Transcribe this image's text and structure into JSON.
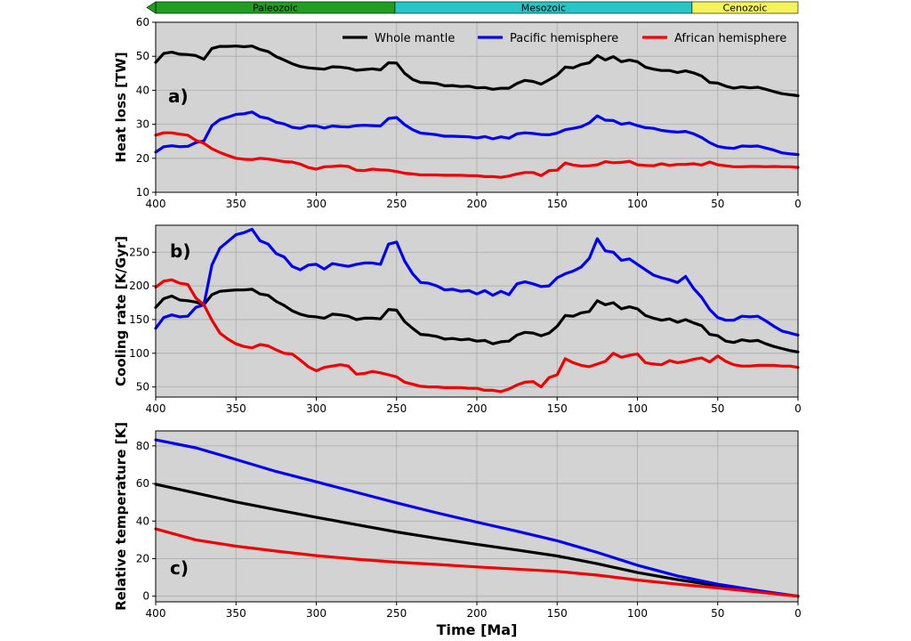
{
  "eras": [
    {
      "name": "Paleozoic",
      "start": 400,
      "end": 251,
      "color": "#1f9e1f"
    },
    {
      "name": "Mesozoic",
      "start": 251,
      "end": 66,
      "color": "#27c5c5"
    },
    {
      "name": "Cenozoic",
      "start": 66,
      "end": 0,
      "color": "#f4f45a"
    }
  ],
  "legend": [
    "Whole mantle",
    "Pacific hemisphere",
    "African hemisphere"
  ],
  "xlabel": "Time [Ma]",
  "colors": {
    "whole": "#000000",
    "pacific": "#0000ee",
    "african": "#ee0000",
    "background": "#d3d3d3"
  },
  "chart_data": [
    {
      "type": "line",
      "panel_label": "a)",
      "xlabel": "",
      "ylabel": "Heat loss [TW]",
      "xlim": [
        400,
        0
      ],
      "ylim": [
        10,
        60
      ],
      "xticks": [
        400,
        350,
        300,
        250,
        200,
        150,
        100,
        50,
        0
      ],
      "yticks": [
        10,
        20,
        30,
        40,
        50,
        60
      ],
      "grid": true,
      "legend_position": "top-right",
      "x": [
        400,
        395,
        390,
        385,
        380,
        375,
        370,
        365,
        360,
        355,
        350,
        345,
        340,
        335,
        330,
        325,
        320,
        315,
        310,
        305,
        300,
        295,
        290,
        285,
        280,
        275,
        270,
        265,
        260,
        255,
        250,
        245,
        240,
        235,
        230,
        225,
        220,
        215,
        210,
        205,
        200,
        195,
        190,
        185,
        180,
        175,
        170,
        165,
        160,
        155,
        150,
        145,
        140,
        135,
        130,
        125,
        120,
        115,
        110,
        105,
        100,
        95,
        90,
        85,
        80,
        75,
        70,
        65,
        60,
        55,
        50,
        45,
        40,
        35,
        30,
        25,
        20,
        15,
        10,
        5,
        0
      ],
      "series": [
        {
          "name": "Whole mantle",
          "color": "#000000",
          "values": [
            48.2,
            50.8,
            51.2,
            50.6,
            50.5,
            50.2,
            49.1,
            52.3,
            52.9,
            52.9,
            53.0,
            52.8,
            53.0,
            52.0,
            51.4,
            49.9,
            48.9,
            47.8,
            47.0,
            46.6,
            46.4,
            46.2,
            46.9,
            46.8,
            46.5,
            45.9,
            46.1,
            46.3,
            46.0,
            48.1,
            48.0,
            45.0,
            43.2,
            42.3,
            42.2,
            42.0,
            41.3,
            41.4,
            41.1,
            41.2,
            40.7,
            40.8,
            40.3,
            40.6,
            40.6,
            42.0,
            42.9,
            42.6,
            41.8,
            43.1,
            44.5,
            46.8,
            46.6,
            47.6,
            48.1,
            50.2,
            48.9,
            49.9,
            48.4,
            48.9,
            48.4,
            46.8,
            46.2,
            45.8,
            45.8,
            45.2,
            45.7,
            45.1,
            44.2,
            42.3,
            42.1,
            41.2,
            40.6,
            41.0,
            40.7,
            40.9,
            40.3,
            39.6,
            39.0,
            38.7,
            38.4
          ]
        },
        {
          "name": "Pacific hemisphere",
          "color": "#0000ee",
          "values": [
            21.8,
            23.4,
            23.7,
            23.4,
            23.5,
            24.6,
            25.1,
            29.6,
            31.4,
            32.1,
            32.9,
            33.1,
            33.6,
            32.2,
            31.7,
            30.6,
            30.1,
            29.1,
            28.8,
            29.5,
            29.5,
            28.9,
            29.5,
            29.3,
            29.2,
            29.6,
            29.7,
            29.6,
            29.5,
            31.7,
            32.0,
            29.9,
            28.4,
            27.4,
            27.2,
            26.9,
            26.5,
            26.5,
            26.4,
            26.3,
            26.0,
            26.4,
            25.7,
            26.3,
            25.9,
            27.2,
            27.5,
            27.3,
            27.0,
            26.9,
            27.4,
            28.4,
            28.8,
            29.3,
            30.4,
            32.5,
            31.2,
            31.1,
            30.0,
            30.4,
            29.6,
            29.0,
            28.8,
            28.2,
            27.9,
            27.7,
            27.9,
            27.2,
            26.1,
            24.6,
            23.5,
            23.1,
            22.9,
            23.6,
            23.5,
            23.6,
            23.0,
            22.4,
            21.6,
            21.3,
            21.1
          ]
        },
        {
          "name": "African hemisphere",
          "color": "#ee0000",
          "values": [
            26.8,
            27.5,
            27.5,
            27.1,
            26.8,
            25.3,
            24.4,
            22.8,
            21.7,
            20.8,
            20.0,
            19.7,
            19.6,
            20.0,
            19.8,
            19.4,
            19.0,
            18.9,
            18.3,
            17.3,
            16.8,
            17.5,
            17.6,
            17.8,
            17.6,
            16.5,
            16.4,
            16.8,
            16.6,
            16.5,
            16.1,
            15.6,
            15.4,
            15.1,
            15.1,
            15.1,
            15.0,
            15.0,
            15.0,
            14.9,
            14.9,
            14.6,
            14.6,
            14.4,
            14.8,
            15.4,
            15.8,
            15.8,
            14.9,
            16.4,
            16.5,
            18.6,
            18.0,
            17.7,
            17.8,
            18.1,
            19.0,
            18.7,
            18.8,
            19.1,
            18.1,
            17.9,
            17.8,
            18.4,
            17.9,
            18.2,
            18.2,
            18.4,
            18.0,
            18.9,
            18.1,
            17.8,
            17.5,
            17.5,
            17.6,
            17.6,
            17.5,
            17.6,
            17.5,
            17.5,
            17.3
          ]
        }
      ]
    },
    {
      "type": "line",
      "panel_label": "b)",
      "xlabel": "",
      "ylabel": "Cooling rate [K/Gyr]",
      "xlim": [
        400,
        0
      ],
      "ylim": [
        35,
        290
      ],
      "xticks": [
        400,
        350,
        300,
        250,
        200,
        150,
        100,
        50,
        0
      ],
      "yticks": [
        50,
        100,
        150,
        200,
        250
      ],
      "grid": true,
      "x": [
        400,
        395,
        390,
        385,
        380,
        375,
        370,
        365,
        360,
        355,
        350,
        345,
        340,
        335,
        330,
        325,
        320,
        315,
        310,
        305,
        300,
        295,
        290,
        285,
        280,
        275,
        270,
        265,
        260,
        255,
        250,
        245,
        240,
        235,
        230,
        225,
        220,
        215,
        210,
        205,
        200,
        195,
        190,
        185,
        180,
        175,
        170,
        165,
        160,
        155,
        150,
        145,
        140,
        135,
        130,
        125,
        120,
        115,
        110,
        105,
        100,
        95,
        90,
        85,
        80,
        75,
        70,
        65,
        60,
        55,
        50,
        45,
        40,
        35,
        30,
        25,
        20,
        15,
        10,
        5,
        0
      ],
      "series": [
        {
          "name": "Whole mantle",
          "color": "#000000",
          "values": [
            168,
            181,
            185,
            179,
            178,
            176,
            172,
            187,
            192,
            193,
            194,
            194,
            195,
            188,
            186,
            177,
            171,
            163,
            158,
            155,
            154,
            152,
            158,
            157,
            155,
            150,
            152,
            152,
            151,
            165,
            164,
            147,
            137,
            128,
            127,
            125,
            121,
            122,
            120,
            121,
            118,
            119,
            114,
            117,
            118,
            127,
            131,
            130,
            126,
            130,
            140,
            156,
            155,
            160,
            162,
            178,
            172,
            175,
            166,
            169,
            166,
            156,
            152,
            149,
            151,
            146,
            150,
            145,
            141,
            128,
            126,
            118,
            116,
            120,
            118,
            119,
            114,
            110,
            107,
            104,
            102
          ]
        },
        {
          "name": "Pacific hemisphere",
          "color": "#0000ee",
          "values": [
            137,
            153,
            157,
            154,
            155,
            168,
            172,
            231,
            256,
            266,
            276,
            279,
            284,
            267,
            262,
            248,
            243,
            229,
            224,
            231,
            232,
            225,
            233,
            231,
            229,
            232,
            234,
            234,
            232,
            262,
            265,
            237,
            218,
            205,
            204,
            200,
            194,
            195,
            192,
            193,
            188,
            193,
            186,
            192,
            187,
            203,
            206,
            203,
            199,
            200,
            212,
            218,
            222,
            228,
            241,
            270,
            252,
            250,
            238,
            240,
            232,
            224,
            216,
            212,
            209,
            205,
            214,
            196,
            183,
            165,
            153,
            149,
            149,
            155,
            154,
            155,
            148,
            140,
            133,
            130,
            127
          ]
        },
        {
          "name": "African hemisphere",
          "color": "#ee0000",
          "values": [
            198,
            207,
            209,
            204,
            202,
            182,
            172,
            149,
            130,
            121,
            114,
            110,
            108,
            113,
            111,
            105,
            100,
            99,
            90,
            80,
            74,
            79,
            81,
            83,
            81,
            69,
            70,
            73,
            71,
            68,
            65,
            57,
            54,
            51,
            50,
            50,
            49,
            49,
            49,
            48,
            48,
            45,
            45,
            43,
            47,
            53,
            57,
            58,
            50,
            64,
            68,
            92,
            86,
            82,
            80,
            84,
            88,
            100,
            94,
            97,
            99,
            86,
            84,
            83,
            89,
            86,
            88,
            91,
            93,
            87,
            96,
            88,
            83,
            81,
            81,
            82,
            82,
            82,
            81,
            81,
            79
          ]
        }
      ]
    },
    {
      "type": "line",
      "panel_label": "c)",
      "xlabel": "Time [Ma]",
      "ylabel": "Relative temperature [K]",
      "xlim": [
        400,
        0
      ],
      "ylim": [
        -3,
        88
      ],
      "xticks": [
        400,
        350,
        300,
        250,
        200,
        150,
        100,
        50,
        0
      ],
      "yticks": [
        0,
        20,
        40,
        60,
        80
      ],
      "grid": true,
      "x": [
        400,
        375,
        350,
        325,
        300,
        275,
        250,
        225,
        200,
        175,
        150,
        125,
        100,
        75,
        50,
        25,
        0
      ],
      "series": [
        {
          "name": "Whole mantle",
          "color": "#000000",
          "values": [
            59.6,
            54.9,
            50.2,
            46.0,
            42.0,
            38.1,
            34.2,
            30.8,
            27.6,
            24.6,
            21.4,
            17.3,
            12.6,
            8.8,
            5.5,
            2.7,
            0
          ]
        },
        {
          "name": "Pacific hemisphere",
          "color": "#0000ee",
          "values": [
            83.2,
            79.0,
            72.8,
            66.4,
            60.9,
            55.3,
            49.7,
            44.4,
            39.4,
            34.6,
            29.5,
            23.3,
            16.5,
            10.8,
            6.4,
            3.0,
            0
          ]
        },
        {
          "name": "African hemisphere",
          "color": "#ee0000",
          "values": [
            35.8,
            30.0,
            26.6,
            24.0,
            21.6,
            19.7,
            18.1,
            16.9,
            15.6,
            14.4,
            13.2,
            11.2,
            8.6,
            6.4,
            4.4,
            2.2,
            0
          ]
        }
      ]
    }
  ]
}
